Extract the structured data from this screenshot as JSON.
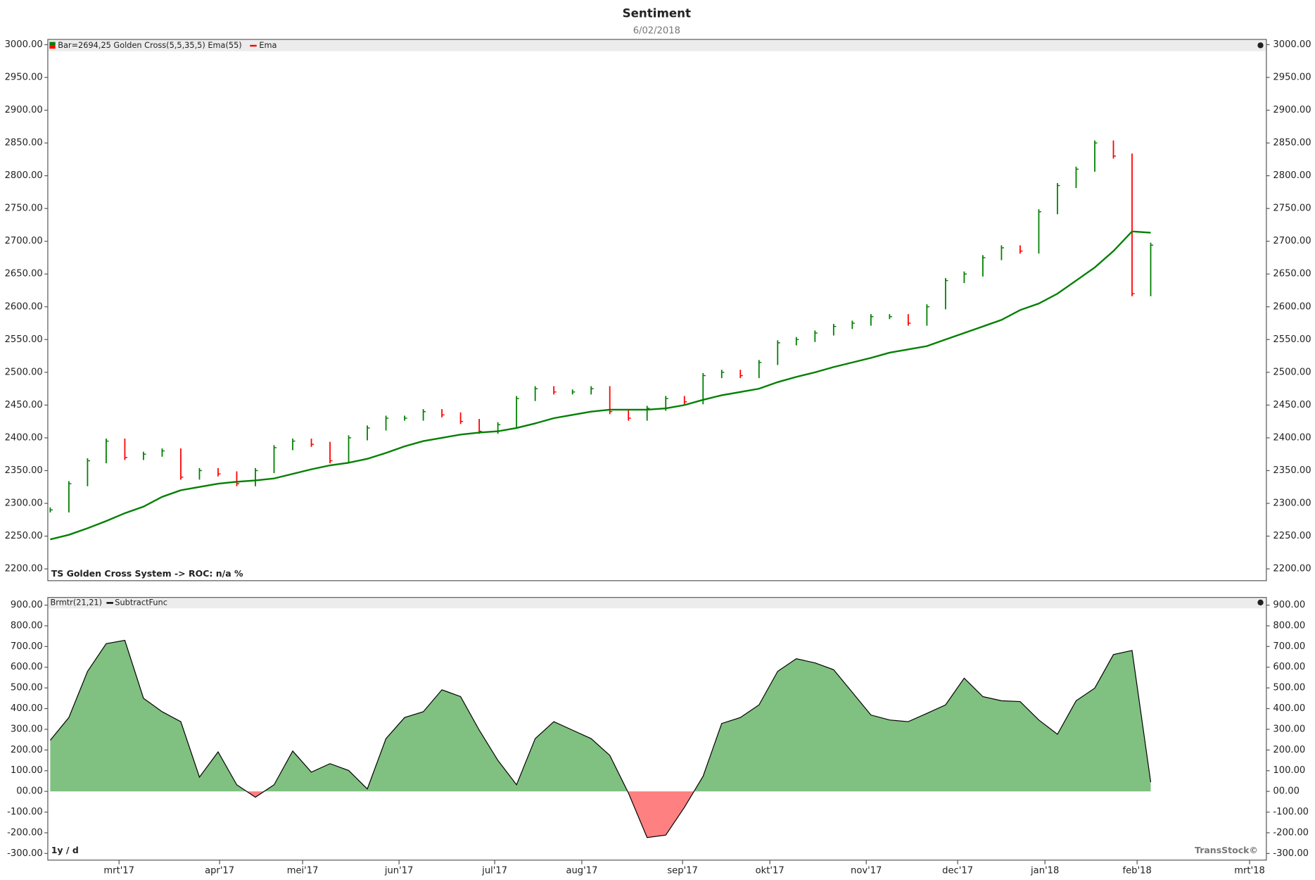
{
  "title": "Sentiment",
  "subtitle": "6/02/2018",
  "chart_data": [
    {
      "type": "price",
      "series": [
        {
          "name": "Bar=2694,25  Golden Cross(5,5,35,5) Ema(55)",
          "up_color": "#008000",
          "down_color": "#ff0000",
          "values": [
            2290,
            2330,
            2365,
            2395,
            2370,
            2375,
            2380,
            2340,
            2350,
            2345,
            2330,
            2350,
            2385,
            2395,
            2390,
            2365,
            2400,
            2415,
            2430,
            2430,
            2440,
            2435,
            2425,
            2410,
            2420,
            2460,
            2475,
            2470,
            2470,
            2475,
            2440,
            2430,
            2445,
            2460,
            2455,
            2495,
            2500,
            2495,
            2515,
            2545,
            2550,
            2560,
            2570,
            2575,
            2585,
            2585,
            2575,
            2600,
            2640,
            2650,
            2675,
            2690,
            2685,
            2745,
            2785,
            2810,
            2850,
            2830,
            2620,
            2694
          ]
        },
        {
          "name": "Ema",
          "color": "#008000",
          "values": [
            2245,
            2252,
            2262,
            2273,
            2285,
            2295,
            2310,
            2320,
            2325,
            2330,
            2333,
            2335,
            2338,
            2345,
            2352,
            2358,
            2362,
            2368,
            2377,
            2387,
            2395,
            2400,
            2405,
            2408,
            2410,
            2415,
            2422,
            2430,
            2435,
            2440,
            2443,
            2443,
            2443,
            2445,
            2450,
            2458,
            2465,
            2470,
            2475,
            2485,
            2493,
            2500,
            2508,
            2515,
            2522,
            2530,
            2535,
            2540,
            2550,
            2560,
            2570,
            2580,
            2595,
            2605,
            2620,
            2640,
            2660,
            2685,
            2715,
            2713
          ]
        }
      ],
      "annotation": "TS Golden Cross System -> ROC: n/a %",
      "ylim": [
        2182,
        3008
      ],
      "yticks": [
        {
          "value": 2200,
          "label": "2200.00"
        },
        {
          "value": 2250,
          "label": "2250.00"
        },
        {
          "value": 2300,
          "label": "2300.00"
        },
        {
          "value": 2350,
          "label": "2350.00"
        },
        {
          "value": 2400,
          "label": "2400.00"
        },
        {
          "value": 2450,
          "label": "2450.00"
        },
        {
          "value": 2500,
          "label": "2500.00"
        },
        {
          "value": 2550,
          "label": "2550.00"
        },
        {
          "value": 2600,
          "label": "2600.00"
        },
        {
          "value": 2650,
          "label": "2650.00"
        },
        {
          "value": 2700,
          "label": "2700.00"
        },
        {
          "value": 2750,
          "label": "2750.00"
        },
        {
          "value": 2800,
          "label": "2800.00"
        },
        {
          "value": 2850,
          "label": "2850.00"
        },
        {
          "value": 2900,
          "label": "2900.00"
        },
        {
          "value": 2950,
          "label": "2950.00"
        },
        {
          "value": 3000,
          "label": "3000.00"
        }
      ]
    },
    {
      "type": "area",
      "indicator": "Brmtr(21,21)",
      "series": [
        {
          "name": "SubtractFunc",
          "color": "#000000",
          "positive_color": "#80c080",
          "negative_color": "#ff8080",
          "values": [
            247,
            357,
            580,
            714,
            730,
            450,
            385,
            337,
            69,
            191,
            32,
            -28,
            32,
            195,
            93,
            134,
            101,
            12,
            255,
            357,
            385,
            491,
            458,
            296,
            150,
            32,
            255,
            337,
            296,
            255,
            174,
            -8,
            -223,
            -211,
            -77,
            73,
            328,
            357,
            418,
            580,
            641,
            621,
            588,
            479,
            369,
            345,
            337,
            377,
            418,
            547,
            458,
            438,
            434,
            345,
            276,
            438,
            499,
            661,
            681,
            45
          ]
        }
      ],
      "annotations": [
        "1y / d",
        "TransStock©"
      ],
      "ylim": [
        -332,
        937
      ],
      "yticks": [
        {
          "value": -300,
          "label": "-300.00"
        },
        {
          "value": -200,
          "label": "-200.00"
        },
        {
          "value": -100,
          "label": "-100.00"
        },
        {
          "value": 0,
          "label": "00.00"
        },
        {
          "value": 100,
          "label": "100.00"
        },
        {
          "value": 200,
          "label": "200.00"
        },
        {
          "value": 300,
          "label": "300.00"
        },
        {
          "value": 400,
          "label": "400.00"
        },
        {
          "value": 500,
          "label": "500.00"
        },
        {
          "value": 600,
          "label": "600.00"
        },
        {
          "value": 700,
          "label": "700.00"
        },
        {
          "value": 800,
          "label": "800.00"
        },
        {
          "value": 900,
          "label": "900.00"
        }
      ],
      "xlim": [
        -0.13,
        65.2
      ],
      "xticks": [
        {
          "value": 3.69,
          "label": "mrt'17"
        },
        {
          "value": 9.08,
          "label": "apr'17"
        },
        {
          "value": 13.53,
          "label": "mei'17"
        },
        {
          "value": 18.7,
          "label": "jun'17"
        },
        {
          "value": 23.83,
          "label": "jul'17"
        },
        {
          "value": 28.5,
          "label": "aug'17"
        },
        {
          "value": 33.9,
          "label": "sep'17"
        },
        {
          "value": 38.58,
          "label": "okt'17"
        },
        {
          "value": 43.75,
          "label": "nov'17"
        },
        {
          "value": 48.65,
          "label": "dec'17"
        },
        {
          "value": 53.33,
          "label": "jan'18"
        },
        {
          "value": 58.27,
          "label": "feb'18"
        },
        {
          "value": 64.3,
          "label": "mrt'18"
        }
      ]
    }
  ]
}
